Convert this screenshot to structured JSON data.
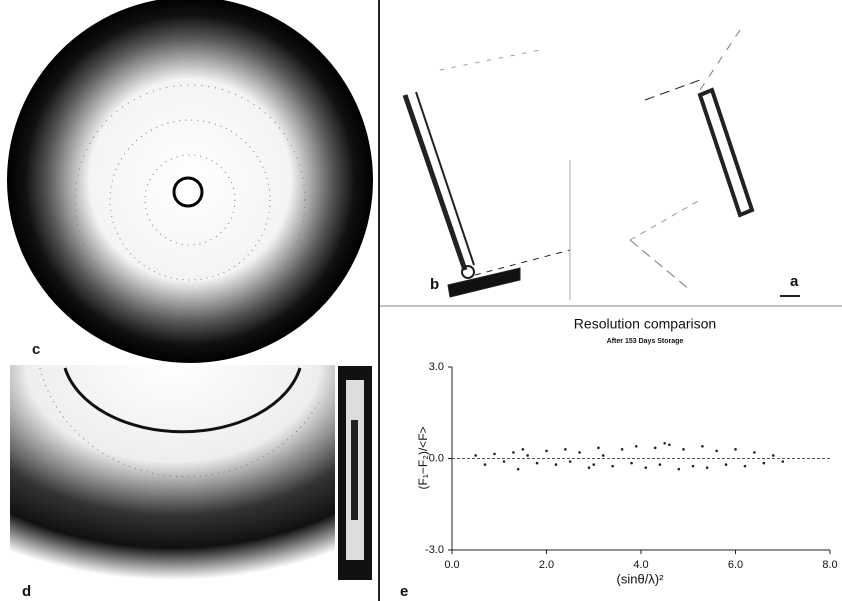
{
  "panel_labels": [
    "c",
    "b",
    "a",
    "d",
    "e"
  ],
  "chart_data": {
    "type": "scatter",
    "title": "Resolution comparison",
    "subtitle": "After 153 Days Storage",
    "x_label": "(sinθ/λ)²",
    "y_label": "(F₁−F₂)/<F>",
    "xlim": [
      0,
      8
    ],
    "ylim": [
      -3,
      3
    ],
    "xticks": [
      {
        "value": 0,
        "label": "0.0"
      },
      {
        "value": 2,
        "label": "2.0"
      },
      {
        "value": 4,
        "label": "4.0"
      },
      {
        "value": 6,
        "label": "6.0"
      },
      {
        "value": 8,
        "label": "8.0"
      }
    ],
    "yticks": [
      {
        "value": -3,
        "label": "-3.0"
      },
      {
        "value": 0,
        "label": "0.0"
      },
      {
        "value": 3,
        "label": "3.0"
      }
    ],
    "color": "#222222",
    "x": [
      0.5,
      0.7,
      0.9,
      1.1,
      1.3,
      1.4,
      1.6,
      1.8,
      2.0,
      2.2,
      2.4,
      2.5,
      2.7,
      2.9,
      3.1,
      3.2,
      3.4,
      3.6,
      3.8,
      3.9,
      4.1,
      4.3,
      4.4,
      4.6,
      4.8,
      4.9,
      5.1,
      5.3,
      5.4,
      5.6,
      5.8,
      6.0,
      6.2,
      6.4,
      6.6,
      6.8,
      7.0,
      1.5,
      3.0,
      4.5
    ],
    "values": [
      0.1,
      -0.2,
      0.15,
      -0.1,
      0.2,
      -0.35,
      0.1,
      -0.15,
      0.25,
      -0.2,
      0.3,
      -0.1,
      0.2,
      -0.3,
      0.35,
      0.1,
      -0.25,
      0.3,
      -0.15,
      0.4,
      -0.3,
      0.35,
      -0.2,
      0.45,
      -0.35,
      0.3,
      -0.25,
      0.4,
      -0.3,
      0.25,
      -0.2,
      0.3,
      -0.25,
      0.2,
      -0.15,
      0.1,
      -0.1,
      0.3,
      -0.2,
      0.5
    ]
  }
}
